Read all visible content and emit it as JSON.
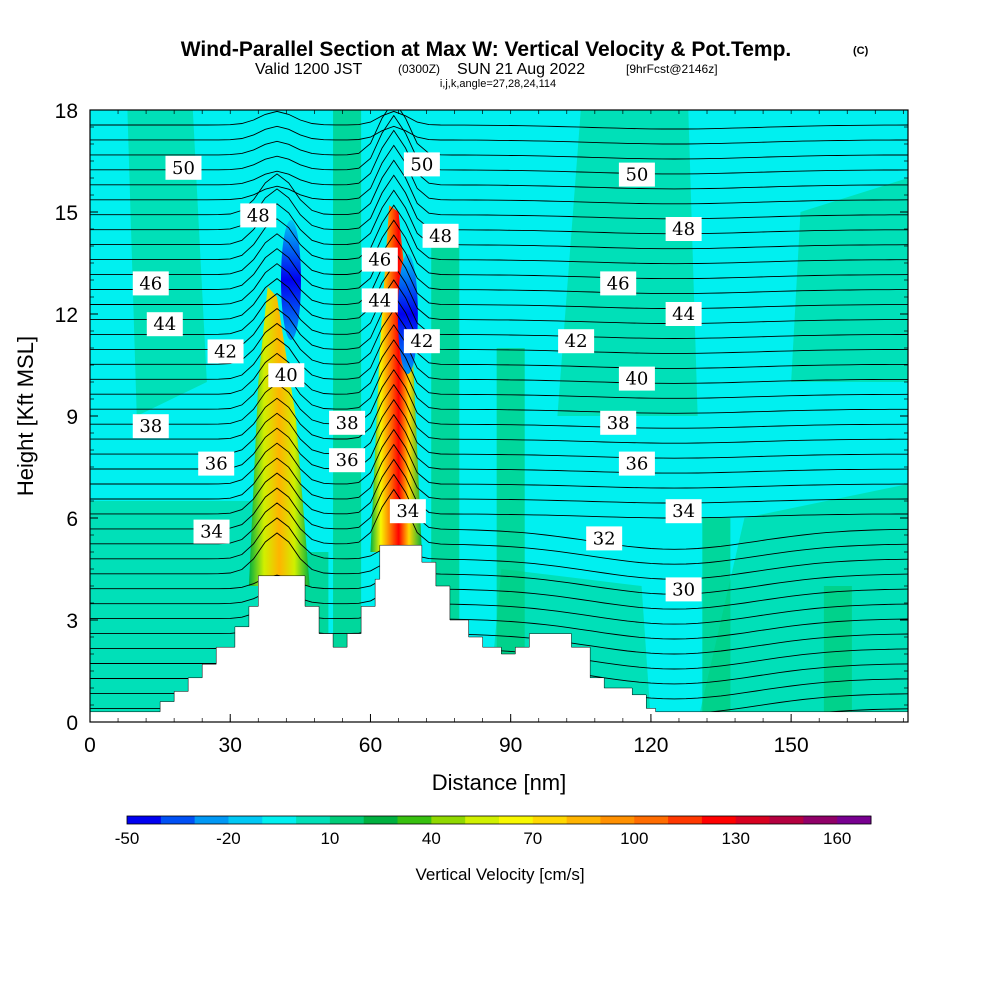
{
  "title": {
    "main": "Wind-Parallel Section at Max W: Vertical Velocity & Pot.Temp.",
    "copyright": "(C)",
    "valid_a": "Valid 1200 JST",
    "valid_b": "(0300Z)",
    "valid_c": "SUN 21 Aug 2022",
    "valid_d": "[9hrFcst@2146z]",
    "indices": "i,j,k,angle=27,28,24,114"
  },
  "chart_data": {
    "type": "contour",
    "xlabel": "Distance [nm]",
    "ylabel": "Height [Kft MSL]",
    "xlim": [
      0,
      175
    ],
    "ylim": [
      0,
      18
    ],
    "xticks": [
      0,
      30,
      60,
      90,
      120,
      150
    ],
    "yticks": [
      0,
      3,
      6,
      9,
      12,
      15,
      18
    ],
    "colorbar": {
      "label": "Vertical Velocity [cm/s]",
      "levels": [
        -50,
        -40,
        -30,
        -20,
        -10,
        0,
        10,
        20,
        30,
        40,
        50,
        60,
        70,
        80,
        90,
        100,
        110,
        120,
        130,
        140,
        150,
        160,
        170,
        180
      ],
      "tick_labels": [
        "-50",
        "-20",
        "10",
        "40",
        "70",
        "100",
        "130",
        "160"
      ],
      "colors": [
        "#0000f0",
        "#0050f5",
        "#0098f5",
        "#00c8f5",
        "#00f0f0",
        "#00e0b8",
        "#00cc78",
        "#00b040",
        "#38c010",
        "#90d800",
        "#d0f000",
        "#f8f800",
        "#ffd800",
        "#ffb400",
        "#ff9000",
        "#ff6c00",
        "#ff3800",
        "#ff0000",
        "#d80020",
        "#b40040",
        "#900068",
        "#780090"
      ]
    },
    "updraft_cores": [
      {
        "x_nm": 40,
        "peak_cm_s": 90,
        "top_kft": 12.5
      },
      {
        "x_nm": 65,
        "peak_cm_s": 140,
        "top_kft": 15
      }
    ],
    "downdraft_cores": [
      {
        "x_nm": 43,
        "min_cm_s": -50,
        "height_kft": 13
      },
      {
        "x_nm": 68,
        "min_cm_s": -40,
        "height_kft": 12
      }
    ],
    "terrain_kft": [
      [
        0,
        0.3
      ],
      [
        15,
        0.3
      ],
      [
        15,
        0.6
      ],
      [
        18,
        0.6
      ],
      [
        18,
        0.9
      ],
      [
        21,
        0.9
      ],
      [
        21,
        1.3
      ],
      [
        24,
        1.3
      ],
      [
        24,
        1.7
      ],
      [
        27,
        1.7
      ],
      [
        27,
        2.2
      ],
      [
        31,
        2.2
      ],
      [
        31,
        2.8
      ],
      [
        34,
        2.8
      ],
      [
        34,
        3.4
      ],
      [
        36,
        3.4
      ],
      [
        36,
        4.3
      ],
      [
        46,
        4.3
      ],
      [
        46,
        3.4
      ],
      [
        49,
        3.4
      ],
      [
        49,
        2.6
      ],
      [
        52,
        2.6
      ],
      [
        52,
        2.2
      ],
      [
        55,
        2.2
      ],
      [
        55,
        2.6
      ],
      [
        58,
        2.6
      ],
      [
        58,
        3.4
      ],
      [
        61,
        3.4
      ],
      [
        61,
        4.2
      ],
      [
        62,
        4.2
      ],
      [
        62,
        5.2
      ],
      [
        71,
        5.2
      ],
      [
        71,
        4.7
      ],
      [
        74,
        4.7
      ],
      [
        74,
        4.0
      ],
      [
        77,
        4.0
      ],
      [
        77,
        3.0
      ],
      [
        81,
        3.0
      ],
      [
        81,
        2.5
      ],
      [
        84,
        2.5
      ],
      [
        84,
        2.2
      ],
      [
        88,
        2.2
      ],
      [
        88,
        2.0
      ],
      [
        91,
        2.0
      ],
      [
        91,
        2.2
      ],
      [
        94,
        2.2
      ],
      [
        94,
        2.6
      ],
      [
        103,
        2.6
      ],
      [
        103,
        2.2
      ],
      [
        107,
        2.2
      ],
      [
        107,
        1.3
      ],
      [
        110,
        1.3
      ],
      [
        110,
        1.0
      ],
      [
        116,
        1.0
      ],
      [
        116,
        0.8
      ],
      [
        119,
        0.8
      ],
      [
        119,
        0.4
      ],
      [
        121,
        0.4
      ],
      [
        121,
        0.3
      ],
      [
        175,
        0.3
      ]
    ],
    "potential_temperature_labels": [
      {
        "value": "50",
        "x": 20,
        "y": 16.3
      },
      {
        "value": "48",
        "x": 36,
        "y": 14.9
      },
      {
        "value": "46",
        "x": 13,
        "y": 12.9
      },
      {
        "value": "44",
        "x": 16,
        "y": 11.7
      },
      {
        "value": "42",
        "x": 29,
        "y": 10.9
      },
      {
        "value": "40",
        "x": 42,
        "y": 10.2
      },
      {
        "value": "38",
        "x": 13,
        "y": 8.7
      },
      {
        "value": "36",
        "x": 27,
        "y": 7.6
      },
      {
        "value": "34",
        "x": 26,
        "y": 5.6
      },
      {
        "value": "50",
        "x": 71,
        "y": 16.4
      },
      {
        "value": "46",
        "x": 62,
        "y": 13.6
      },
      {
        "value": "48",
        "x": 75,
        "y": 14.3
      },
      {
        "value": "44",
        "x": 62,
        "y": 12.4
      },
      {
        "value": "42",
        "x": 71,
        "y": 11.2
      },
      {
        "value": "38",
        "x": 55,
        "y": 8.8
      },
      {
        "value": "36",
        "x": 55,
        "y": 7.7
      },
      {
        "value": "34",
        "x": 68,
        "y": 6.2
      },
      {
        "value": "50",
        "x": 117,
        "y": 16.1
      },
      {
        "value": "48",
        "x": 127,
        "y": 14.5
      },
      {
        "value": "46",
        "x": 113,
        "y": 12.9
      },
      {
        "value": "44",
        "x": 127,
        "y": 12.0
      },
      {
        "value": "42",
        "x": 104,
        "y": 11.2
      },
      {
        "value": "40",
        "x": 117,
        "y": 10.1
      },
      {
        "value": "38",
        "x": 113,
        "y": 8.8
      },
      {
        "value": "36",
        "x": 117,
        "y": 7.6
      },
      {
        "value": "34",
        "x": 127,
        "y": 6.2
      },
      {
        "value": "32",
        "x": 110,
        "y": 5.4
      },
      {
        "value": "30",
        "x": 127,
        "y": 3.9
      }
    ]
  }
}
